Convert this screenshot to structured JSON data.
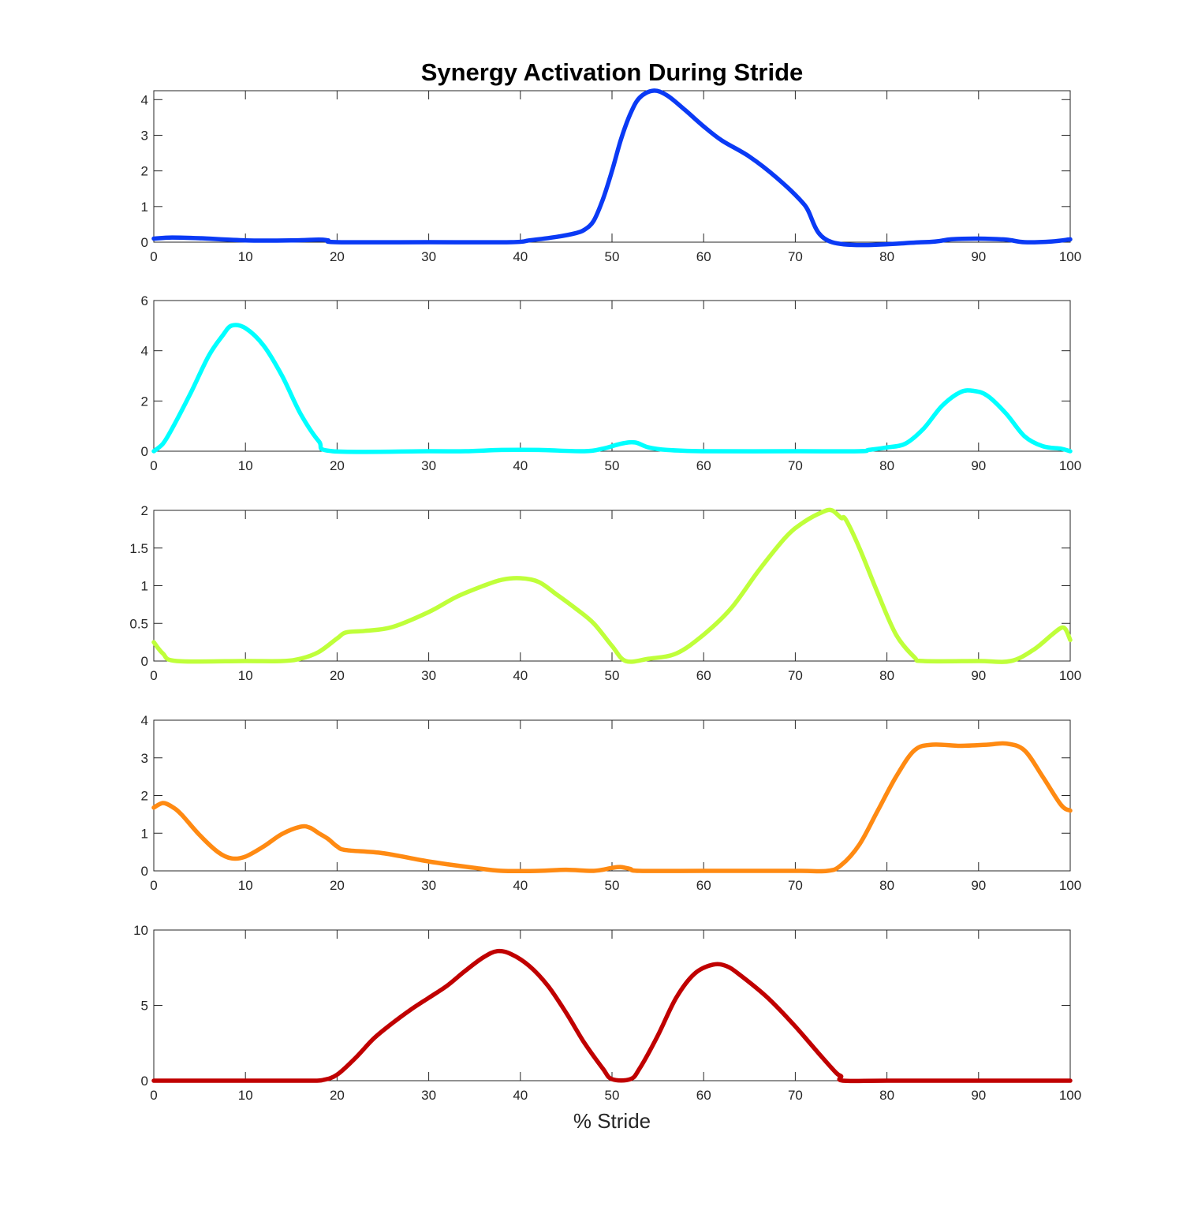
{
  "chart_data": {
    "type": "line",
    "title": "Synergy Activation During Stride",
    "xlabel": "% Stride",
    "ylabel": "",
    "xlim": [
      0,
      100
    ],
    "x_ticks": [
      0,
      10,
      20,
      30,
      40,
      50,
      60,
      70,
      80,
      90,
      100
    ],
    "grid": false,
    "legend": "none",
    "panels": [
      {
        "name": "",
        "color": "#0a3af5",
        "ylim": [
          0,
          4.25
        ],
        "y_ticks": [
          0,
          1,
          2,
          3,
          4
        ],
        "points": [
          [
            0,
            0.1
          ],
          [
            2,
            0.13
          ],
          [
            5,
            0.11
          ],
          [
            10,
            0.05
          ],
          [
            15,
            0.05
          ],
          [
            18,
            0.07
          ],
          [
            19,
            0.05
          ],
          [
            20,
            0
          ],
          [
            30,
            0
          ],
          [
            39,
            0
          ],
          [
            41,
            0.05
          ],
          [
            44,
            0.15
          ],
          [
            46,
            0.25
          ],
          [
            47,
            0.35
          ],
          [
            48,
            0.6
          ],
          [
            49,
            1.2
          ],
          [
            50,
            2.0
          ],
          [
            51,
            2.9
          ],
          [
            52,
            3.6
          ],
          [
            53,
            4.05
          ],
          [
            54.5,
            4.25
          ],
          [
            56,
            4.12
          ],
          [
            58,
            3.7
          ],
          [
            60,
            3.25
          ],
          [
            62,
            2.85
          ],
          [
            65,
            2.4
          ],
          [
            68,
            1.8
          ],
          [
            71,
            1.05
          ],
          [
            74,
            0
          ],
          [
            84,
            0
          ],
          [
            87,
            0.08
          ],
          [
            90,
            0.1
          ],
          [
            93,
            0.07
          ],
          [
            95,
            0
          ],
          [
            98,
            0.02
          ],
          [
            100,
            0.08
          ]
        ]
      },
      {
        "name": "",
        "color": "#00ffff",
        "ylim": [
          0,
          6
        ],
        "y_ticks": [
          0,
          2,
          4,
          6
        ],
        "points": [
          [
            0,
            0
          ],
          [
            1,
            0.3
          ],
          [
            2,
            0.9
          ],
          [
            4,
            2.3
          ],
          [
            6,
            3.8
          ],
          [
            7.5,
            4.6
          ],
          [
            8.5,
            5.0
          ],
          [
            10,
            4.9
          ],
          [
            12,
            4.2
          ],
          [
            14,
            3.0
          ],
          [
            16,
            1.5
          ],
          [
            18,
            0.4
          ],
          [
            19.5,
            0
          ],
          [
            30,
            0
          ],
          [
            34,
            0
          ],
          [
            38,
            0.05
          ],
          [
            42,
            0.05
          ],
          [
            47,
            0
          ],
          [
            49,
            0.1
          ],
          [
            51,
            0.3
          ],
          [
            52.5,
            0.35
          ],
          [
            54,
            0.15
          ],
          [
            56,
            0.05
          ],
          [
            60,
            0
          ],
          [
            70,
            0
          ],
          [
            77,
            0
          ],
          [
            78,
            0.05
          ],
          [
            80,
            0.15
          ],
          [
            82,
            0.3
          ],
          [
            84,
            0.9
          ],
          [
            86,
            1.8
          ],
          [
            88,
            2.35
          ],
          [
            89.5,
            2.4
          ],
          [
            91,
            2.2
          ],
          [
            93,
            1.5
          ],
          [
            95,
            0.6
          ],
          [
            97,
            0.2
          ],
          [
            99,
            0.1
          ],
          [
            100,
            0
          ]
        ]
      },
      {
        "name": "",
        "color": "#bfff3a",
        "ylim": [
          0,
          2
        ],
        "y_ticks": [
          0,
          0.5,
          1,
          1.5,
          2
        ],
        "points": [
          [
            0,
            0.25
          ],
          [
            1,
            0.1
          ],
          [
            2.5,
            0
          ],
          [
            10,
            0
          ],
          [
            14,
            0
          ],
          [
            16,
            0.03
          ],
          [
            18,
            0.12
          ],
          [
            20,
            0.3
          ],
          [
            21,
            0.38
          ],
          [
            23,
            0.4
          ],
          [
            26,
            0.45
          ],
          [
            30,
            0.65
          ],
          [
            33,
            0.85
          ],
          [
            36,
            1.0
          ],
          [
            38,
            1.08
          ],
          [
            40,
            1.1
          ],
          [
            42,
            1.05
          ],
          [
            44,
            0.88
          ],
          [
            46,
            0.7
          ],
          [
            48,
            0.5
          ],
          [
            50,
            0.2
          ],
          [
            51.5,
            0
          ],
          [
            54,
            0.03
          ],
          [
            57,
            0.1
          ],
          [
            60,
            0.35
          ],
          [
            63,
            0.7
          ],
          [
            66,
            1.2
          ],
          [
            69,
            1.65
          ],
          [
            71,
            1.85
          ],
          [
            73,
            1.98
          ],
          [
            74,
            2.0
          ],
          [
            75,
            1.9
          ],
          [
            75.5,
            1.88
          ],
          [
            77,
            1.5
          ],
          [
            79,
            0.9
          ],
          [
            81,
            0.35
          ],
          [
            83,
            0.05
          ],
          [
            84,
            0
          ],
          [
            90,
            0
          ],
          [
            93.5,
            0
          ],
          [
            96,
            0.15
          ],
          [
            98,
            0.35
          ],
          [
            99,
            0.44
          ],
          [
            99.5,
            0.42
          ],
          [
            100,
            0.28
          ]
        ]
      },
      {
        "name": "",
        "color": "#ff8a12",
        "ylim": [
          0,
          4
        ],
        "y_ticks": [
          0,
          1,
          2,
          3,
          4
        ],
        "points": [
          [
            0,
            1.68
          ],
          [
            1,
            1.8
          ],
          [
            2,
            1.7
          ],
          [
            3,
            1.5
          ],
          [
            5,
            0.95
          ],
          [
            7,
            0.5
          ],
          [
            8.5,
            0.33
          ],
          [
            10,
            0.38
          ],
          [
            12,
            0.65
          ],
          [
            14,
            0.98
          ],
          [
            16,
            1.17
          ],
          [
            17,
            1.15
          ],
          [
            18,
            1.0
          ],
          [
            19,
            0.85
          ],
          [
            20,
            0.65
          ],
          [
            21,
            0.55
          ],
          [
            25,
            0.47
          ],
          [
            30,
            0.25
          ],
          [
            35,
            0.08
          ],
          [
            38,
            0
          ],
          [
            42,
            0
          ],
          [
            45,
            0.03
          ],
          [
            48,
            0
          ],
          [
            50,
            0.08
          ],
          [
            51,
            0.1
          ],
          [
            52,
            0.05
          ],
          [
            53,
            0
          ],
          [
            60,
            0
          ],
          [
            70,
            0
          ],
          [
            73.5,
            0
          ],
          [
            75,
            0.15
          ],
          [
            77,
            0.7
          ],
          [
            79,
            1.6
          ],
          [
            81,
            2.5
          ],
          [
            83,
            3.2
          ],
          [
            85,
            3.35
          ],
          [
            88,
            3.32
          ],
          [
            91,
            3.35
          ],
          [
            93,
            3.38
          ],
          [
            95,
            3.2
          ],
          [
            97,
            2.5
          ],
          [
            99,
            1.75
          ],
          [
            100,
            1.6
          ]
        ]
      },
      {
        "name": "",
        "color": "#c00000",
        "ylim": [
          0,
          10
        ],
        "y_ticks": [
          0,
          5,
          10
        ],
        "points": [
          [
            0,
            0
          ],
          [
            10,
            0
          ],
          [
            17,
            0
          ],
          [
            18.5,
            0.05
          ],
          [
            20,
            0.4
          ],
          [
            22,
            1.5
          ],
          [
            24,
            2.8
          ],
          [
            26,
            3.8
          ],
          [
            28,
            4.7
          ],
          [
            30,
            5.5
          ],
          [
            32,
            6.3
          ],
          [
            34,
            7.3
          ],
          [
            36,
            8.2
          ],
          [
            37.5,
            8.6
          ],
          [
            39,
            8.4
          ],
          [
            41,
            7.6
          ],
          [
            43,
            6.3
          ],
          [
            45,
            4.5
          ],
          [
            47,
            2.5
          ],
          [
            49,
            0.8
          ],
          [
            50,
            0.1
          ],
          [
            52,
            0.1
          ],
          [
            53,
            0.8
          ],
          [
            55,
            3.0
          ],
          [
            57,
            5.5
          ],
          [
            59,
            7.1
          ],
          [
            61,
            7.7
          ],
          [
            62.5,
            7.6
          ],
          [
            64,
            7.0
          ],
          [
            67,
            5.5
          ],
          [
            70,
            3.6
          ],
          [
            73,
            1.5
          ],
          [
            74.5,
            0.5
          ],
          [
            75,
            0.3
          ],
          [
            75.2,
            0
          ],
          [
            80,
            0
          ],
          [
            90,
            0
          ],
          [
            100,
            0
          ]
        ]
      }
    ]
  }
}
